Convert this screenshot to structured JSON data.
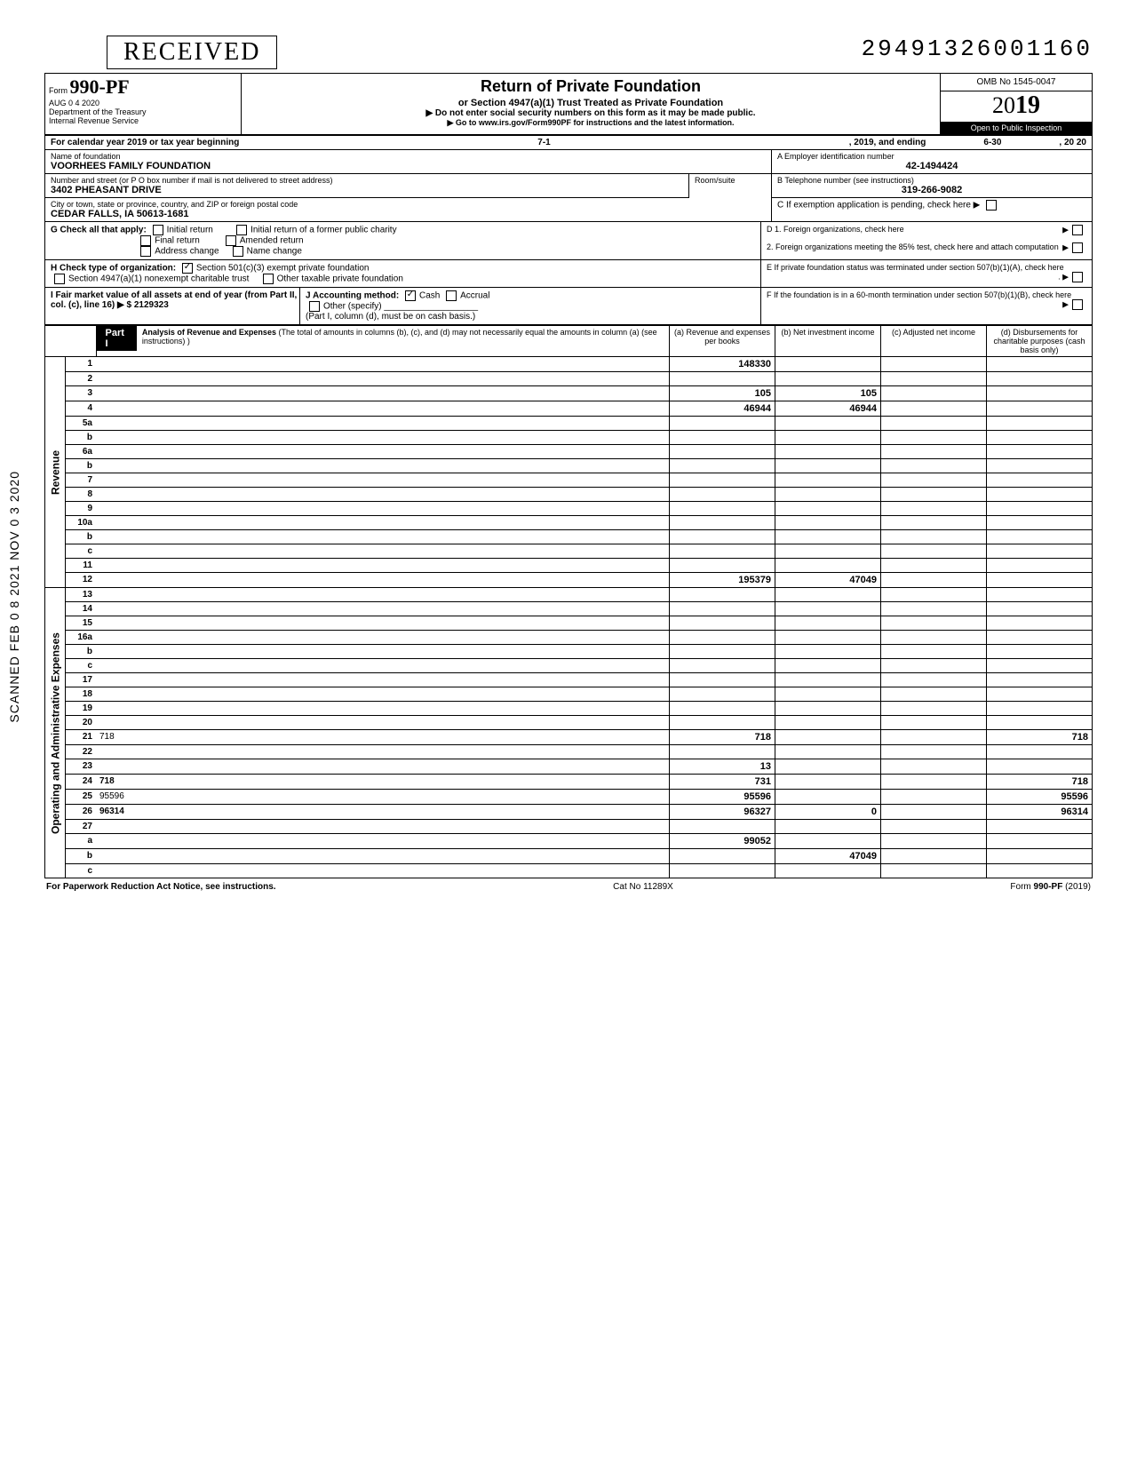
{
  "doc_id": "29491326001160",
  "stamp": "RECEIVED",
  "stamp_date": "AUG 0 4 2020",
  "form": {
    "number": "990-PF",
    "dept": "Department of the Treasury",
    "irs": "Internal Revenue Service",
    "title": "Return of Private Foundation",
    "subtitle": "or Section 4947(a)(1) Trust Treated as Private Foundation",
    "warn": "▶ Do not enter social security numbers on this form as it may be made public.",
    "goto": "▶ Go to www.irs.gov/Form990PF for instructions and the latest information.",
    "omb": "OMB No 1545-0047",
    "year": "2019",
    "inspect": "Open to Public Inspection"
  },
  "calendar": {
    "label": "For calendar year 2019 or tax year beginning",
    "begin": "7-1",
    "mid": ", 2019, and ending",
    "end": "6-30",
    "endyear": ", 20    20"
  },
  "entity": {
    "name_label": "Name of foundation",
    "name": "VOORHEES FAMILY FOUNDATION",
    "ein_label": "A  Employer identification number",
    "ein": "42-1494424",
    "addr_label": "Number and street (or P O  box number if mail is not delivered to street address)",
    "addr": "3402 PHEASANT DRIVE",
    "room_label": "Room/suite",
    "phone_label": "B  Telephone number (see instructions)",
    "phone": "319-266-9082",
    "city_label": "City or town, state or province, country, and ZIP or foreign postal code",
    "city": "CEDAR FALLS, IA 50613-1681",
    "c_label": "C  If exemption application is pending, check here ▶"
  },
  "section_g": {
    "label": "G  Check all that apply:",
    "opts": [
      "Initial return",
      "Initial return of a former public charity",
      "Final return",
      "Amended return",
      "Address change",
      "Name change"
    ],
    "d1": "D  1. Foreign organizations, check here",
    "d2": "2. Foreign organizations meeting the 85% test, check here and attach computation"
  },
  "section_h": {
    "label": "H  Check type of organization:",
    "opt1": "Section 501(c)(3) exempt private foundation",
    "opt2": "Section 4947(a)(1) nonexempt charitable trust",
    "opt3": "Other taxable private foundation",
    "e": "E  If private foundation status was terminated under section 507(b)(1)(A), check here"
  },
  "section_i": {
    "label": "I   Fair market value of all assets at end of year (from Part II, col. (c), line 16) ▶ $",
    "fmv": "2129323",
    "j": "J  Accounting method:",
    "j_opts": [
      "Cash",
      "Accrual",
      "Other (specify)"
    ],
    "note": "(Part I, column (d), must be on cash basis.)",
    "f": "F  If the foundation is in a 60-month termination under section 507(b)(1)(B), check here"
  },
  "part1": {
    "label": "Part I",
    "title": "Analysis of Revenue and Expenses",
    "title_note": "(The total of amounts in columns (b), (c), and (d) may not necessarily equal the amounts in column (a) (see instructions) )",
    "cols": [
      "(a) Revenue and expenses per books",
      "(b) Net investment income",
      "(c) Adjusted net income",
      "(d) Disbursements for charitable purposes (cash basis only)"
    ]
  },
  "rows": [
    {
      "n": "1",
      "d": "",
      "a": "148330",
      "b": "",
      "c": ""
    },
    {
      "n": "2",
      "d": "",
      "a": "",
      "b": "",
      "c": ""
    },
    {
      "n": "3",
      "d": "",
      "a": "105",
      "b": "105",
      "c": ""
    },
    {
      "n": "4",
      "d": "",
      "a": "46944",
      "b": "46944",
      "c": ""
    },
    {
      "n": "5a",
      "d": "",
      "a": "",
      "b": "",
      "c": ""
    },
    {
      "n": "b",
      "d": "",
      "a": "",
      "b": "",
      "c": ""
    },
    {
      "n": "6a",
      "d": "",
      "a": "",
      "b": "",
      "c": ""
    },
    {
      "n": "b",
      "d": "",
      "a": "",
      "b": "",
      "c": ""
    },
    {
      "n": "7",
      "d": "",
      "a": "",
      "b": "",
      "c": ""
    },
    {
      "n": "8",
      "d": "",
      "a": "",
      "b": "",
      "c": ""
    },
    {
      "n": "9",
      "d": "",
      "a": "",
      "b": "",
      "c": ""
    },
    {
      "n": "10a",
      "d": "",
      "a": "",
      "b": "",
      "c": ""
    },
    {
      "n": "b",
      "d": "",
      "a": "",
      "b": "",
      "c": ""
    },
    {
      "n": "c",
      "d": "",
      "a": "",
      "b": "",
      "c": ""
    },
    {
      "n": "11",
      "d": "",
      "a": "",
      "b": "",
      "c": ""
    },
    {
      "n": "12",
      "d": "",
      "bold": true,
      "a": "195379",
      "b": "47049",
      "c": ""
    },
    {
      "n": "13",
      "d": "",
      "a": "",
      "b": "",
      "c": ""
    },
    {
      "n": "14",
      "d": "",
      "a": "",
      "b": "",
      "c": ""
    },
    {
      "n": "15",
      "d": "",
      "a": "",
      "b": "",
      "c": ""
    },
    {
      "n": "16a",
      "d": "",
      "a": "",
      "b": "",
      "c": ""
    },
    {
      "n": "b",
      "d": "",
      "a": "",
      "b": "",
      "c": ""
    },
    {
      "n": "c",
      "d": "",
      "a": "",
      "b": "",
      "c": ""
    },
    {
      "n": "17",
      "d": "",
      "a": "",
      "b": "",
      "c": ""
    },
    {
      "n": "18",
      "d": "",
      "a": "",
      "b": "",
      "c": ""
    },
    {
      "n": "19",
      "d": "",
      "a": "",
      "b": "",
      "c": ""
    },
    {
      "n": "20",
      "d": "",
      "a": "",
      "b": "",
      "c": ""
    },
    {
      "n": "21",
      "d": "718",
      "a": "718",
      "b": "",
      "c": ""
    },
    {
      "n": "22",
      "d": "",
      "a": "",
      "b": "",
      "c": ""
    },
    {
      "n": "23",
      "d": "",
      "a": "13",
      "b": "",
      "c": ""
    },
    {
      "n": "24",
      "d": "718",
      "bold": true,
      "a": "731",
      "b": "",
      "c": ""
    },
    {
      "n": "25",
      "d": "95596",
      "a": "95596",
      "b": "",
      "c": ""
    },
    {
      "n": "26",
      "d": "96314",
      "bold": true,
      "a": "96327",
      "b": "0",
      "c": ""
    },
    {
      "n": "27",
      "d": "",
      "a": "",
      "b": "",
      "c": ""
    },
    {
      "n": "a",
      "d": "",
      "bold": true,
      "a": "99052",
      "b": "",
      "c": ""
    },
    {
      "n": "b",
      "d": "",
      "bold": true,
      "a": "",
      "b": "47049",
      "c": ""
    },
    {
      "n": "c",
      "d": "",
      "bold": true,
      "a": "",
      "b": "",
      "c": ""
    }
  ],
  "side_labels": {
    "revenue": "Revenue",
    "expenses": "Operating and Administrative Expenses"
  },
  "footer": {
    "left": "For Paperwork Reduction Act Notice, see instructions.",
    "mid": "Cat No  11289X",
    "right": "Form 990-PF (2019)"
  },
  "left_margin": "SCANNED  FEB 0 8 2021  NOV 0 3 2020"
}
